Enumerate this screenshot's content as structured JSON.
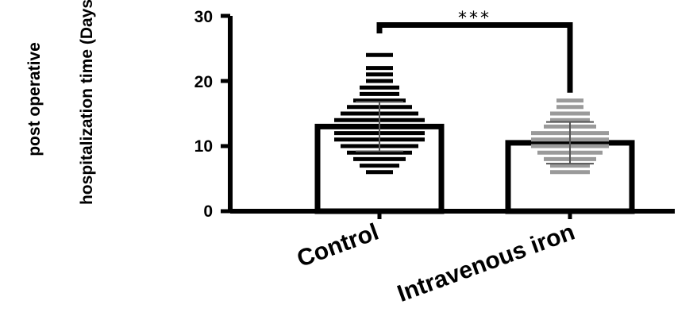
{
  "chart_data": {
    "type": "bar",
    "ylabel_lines": [
      "post operative",
      "hospitalization time (Days)"
    ],
    "ylim": [
      0,
      30
    ],
    "yticks": [
      "0",
      "10",
      "20",
      "30"
    ],
    "categories": [
      "Control",
      "Intravenous iron"
    ],
    "values": [
      13,
      10.5
    ],
    "error": [
      3.8,
      3.2
    ],
    "colors": {
      "control_points": "#000000",
      "iron_points": "#9a9a9a",
      "bar_outline": "#000000"
    },
    "points": [
      [
        6,
        7,
        7,
        8,
        8,
        8,
        9,
        9,
        9,
        9,
        10,
        10,
        10,
        10,
        10,
        11,
        11,
        11,
        11,
        11,
        11,
        12,
        12,
        12,
        12,
        12,
        12,
        13,
        13,
        13,
        13,
        13,
        13,
        13,
        14,
        14,
        14,
        14,
        14,
        14,
        15,
        15,
        15,
        15,
        15,
        16,
        16,
        16,
        16,
        17,
        17,
        17,
        18,
        18,
        19,
        19,
        20,
        21,
        22,
        24
      ],
      [
        6,
        6,
        7,
        7,
        8,
        8,
        8,
        9,
        9,
        9,
        9,
        10,
        10,
        10,
        10,
        10,
        11,
        11,
        11,
        11,
        11,
        12,
        12,
        12,
        12,
        12,
        13,
        13,
        13,
        14,
        14,
        15,
        15,
        16,
        17
      ]
    ],
    "significance": "***"
  }
}
